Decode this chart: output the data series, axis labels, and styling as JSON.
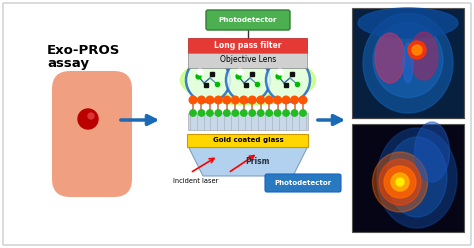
{
  "bg_color": "#ffffff",
  "border_color": "#cccccc",
  "text_exo_pros": "Exo-PROS\nassay",
  "text_photodetector_top": "Photodetector",
  "text_long_pass": "Long pass filter",
  "text_objective": "Objective Lens",
  "text_gold": "Gold coated glass",
  "text_prism": "Prism",
  "text_incident": "Incident laser",
  "text_photodetector_bot": "Photodetector",
  "green_box_color": "#4CAF50",
  "red_box_color": "#e53935",
  "gray_box_color": "#d0d0d0",
  "yellow_box_color": "#FFD600",
  "blue_prism_color": "#aaccee",
  "blue_arrow_color": "#1a6ab5",
  "blue_label_color": "#2979c0",
  "finger_skin_color": "#f0a080",
  "finger_blood_color": "#bb0000",
  "orange_dot_color": "#FF5500",
  "green_dot_color": "#22bb22",
  "circle_outline": "#2266cc",
  "circle_fill": "#e8ffe8",
  "green_glow": "#aaff44",
  "pillar_color": "#ccbbaa",
  "hatch_color": "#c8d8e8"
}
